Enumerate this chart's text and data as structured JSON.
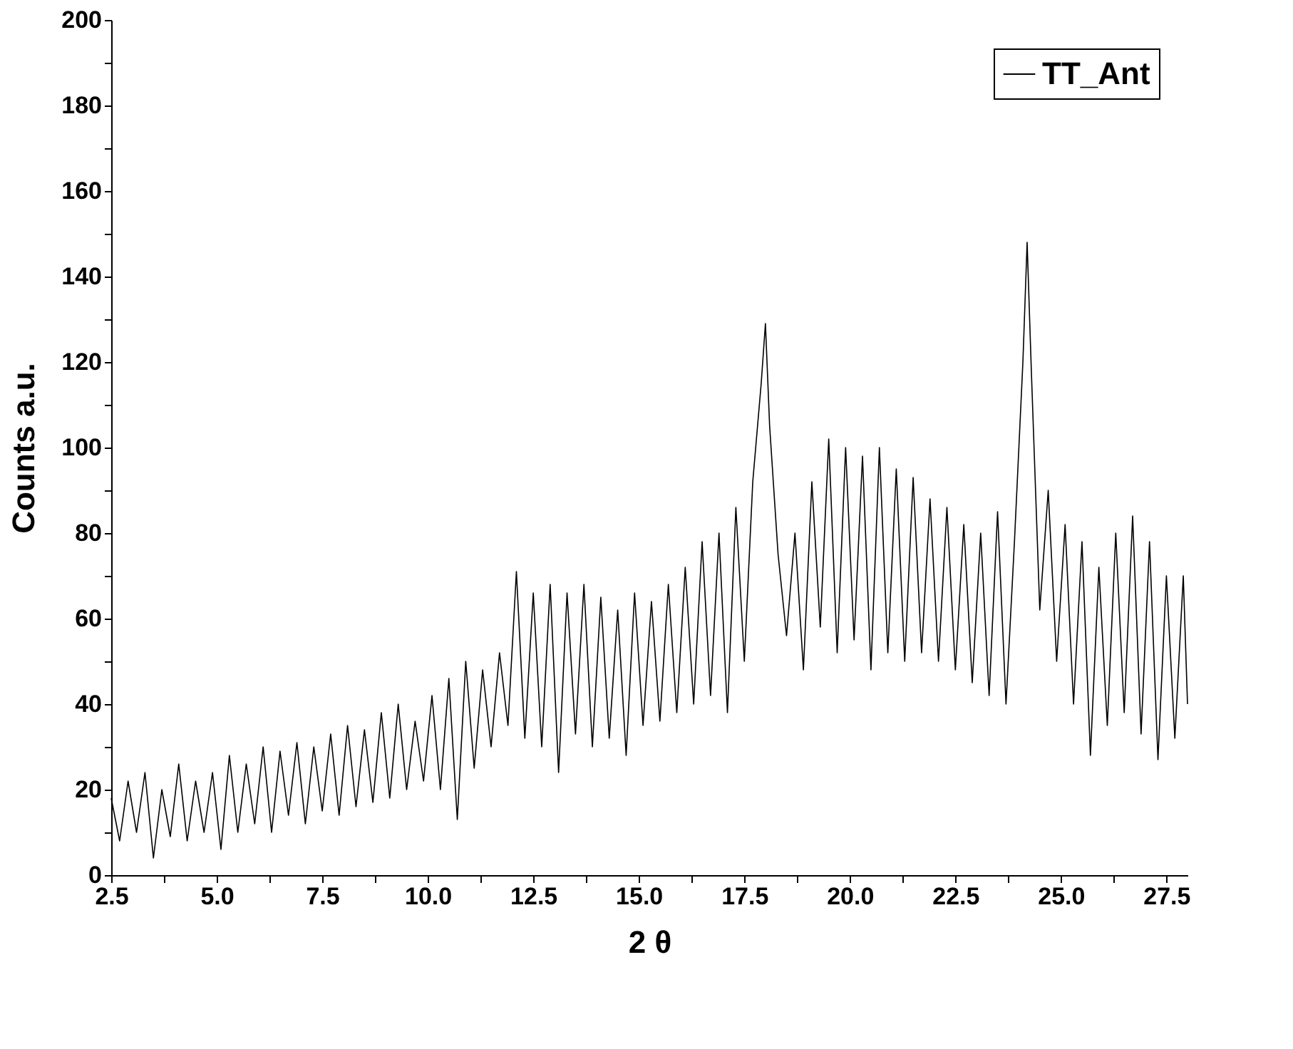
{
  "chart_data": {
    "type": "line",
    "xlabel": "2 θ",
    "ylabel": "Counts a.u.",
    "xlim": [
      2.5,
      28.0
    ],
    "ylim": [
      0,
      200
    ],
    "xticks": [
      {
        "value": 2.5,
        "label": "2.5"
      },
      {
        "value": 3.75,
        "label": null
      },
      {
        "value": 5,
        "label": "5.0"
      },
      {
        "value": 6.25,
        "label": null
      },
      {
        "value": 7.5,
        "label": "7.5"
      },
      {
        "value": 8.75,
        "label": null
      },
      {
        "value": 10,
        "label": "10.0"
      },
      {
        "value": 11.25,
        "label": null
      },
      {
        "value": 12.5,
        "label": "12.5"
      },
      {
        "value": 13.75,
        "label": null
      },
      {
        "value": 15,
        "label": "15.0"
      },
      {
        "value": 16.25,
        "label": null
      },
      {
        "value": 17.5,
        "label": "17.5"
      },
      {
        "value": 18.75,
        "label": null
      },
      {
        "value": 20,
        "label": "20.0"
      },
      {
        "value": 21.25,
        "label": null
      },
      {
        "value": 22.5,
        "label": "22.5"
      },
      {
        "value": 23.75,
        "label": null
      },
      {
        "value": 25,
        "label": "25.0"
      },
      {
        "value": 26.25,
        "label": null
      },
      {
        "value": 27.5,
        "label": "27.5"
      }
    ],
    "yticks": [
      0,
      {
        "value": 10,
        "label": null
      },
      20,
      {
        "value": 30,
        "label": null
      },
      40,
      {
        "value": 50,
        "label": null
      },
      60,
      {
        "value": 70,
        "label": null
      },
      80,
      {
        "value": 90,
        "label": null
      },
      100,
      {
        "value": 110,
        "label": null
      },
      120,
      {
        "value": 130,
        "label": null
      },
      140,
      {
        "value": 150,
        "label": null
      },
      160,
      {
        "value": 170,
        "label": null
      },
      180,
      {
        "value": 190,
        "label": null
      },
      200
    ],
    "grid": false,
    "legend": "top right",
    "marker": "none",
    "line_style": "solid",
    "series": [
      {
        "name": "TT_Ant",
        "color": "#000000",
        "x": [
          2.5,
          2.7,
          2.9,
          3.1,
          3.3,
          3.5,
          3.7,
          3.9,
          4.1,
          4.3,
          4.5,
          4.7,
          4.9,
          5.1,
          5.3,
          5.5,
          5.7,
          5.9,
          6.1,
          6.3,
          6.5,
          6.7,
          6.9,
          7.1,
          7.3,
          7.5,
          7.7,
          7.9,
          8.1,
          8.3,
          8.5,
          8.7,
          8.9,
          9.1,
          9.3,
          9.5,
          9.7,
          9.9,
          10.1,
          10.3,
          10.5,
          10.7,
          10.9,
          11.1,
          11.3,
          11.5,
          11.7,
          11.9,
          12.1,
          12.3,
          12.5,
          12.7,
          12.9,
          13.1,
          13.3,
          13.5,
          13.7,
          13.9,
          14.1,
          14.3,
          14.5,
          14.7,
          14.9,
          15.1,
          15.3,
          15.5,
          15.7,
          15.9,
          16.1,
          16.3,
          16.5,
          16.7,
          16.9,
          17.1,
          17.3,
          17.5,
          17.7,
          17.9,
          18.0,
          18.1,
          18.3,
          18.5,
          18.7,
          18.9,
          19.1,
          19.3,
          19.5,
          19.7,
          19.9,
          20.1,
          20.3,
          20.5,
          20.7,
          20.9,
          21.1,
          21.3,
          21.5,
          21.7,
          21.9,
          22.1,
          22.3,
          22.5,
          22.7,
          22.9,
          23.1,
          23.3,
          23.5,
          23.7,
          23.9,
          24.1,
          24.2,
          24.3,
          24.5,
          24.7,
          24.9,
          25.1,
          25.3,
          25.5,
          25.7,
          25.9,
          26.1,
          26.3,
          26.5,
          26.7,
          26.9,
          27.1,
          27.3,
          27.5,
          27.7,
          27.9,
          28.0
        ],
        "values": [
          18,
          8,
          22,
          10,
          24,
          4,
          20,
          9,
          26,
          8,
          22,
          10,
          24,
          6,
          28,
          10,
          26,
          12,
          30,
          10,
          29,
          14,
          31,
          12,
          30,
          15,
          33,
          14,
          35,
          16,
          34,
          17,
          38,
          18,
          40,
          20,
          36,
          22,
          42,
          20,
          46,
          13,
          50,
          25,
          48,
          30,
          52,
          35,
          71,
          32,
          66,
          30,
          68,
          24,
          66,
          33,
          68,
          30,
          65,
          32,
          62,
          28,
          66,
          35,
          64,
          36,
          68,
          38,
          72,
          40,
          78,
          42,
          80,
          38,
          86,
          50,
          92,
          115,
          129,
          105,
          75,
          56,
          80,
          48,
          92,
          58,
          102,
          52,
          100,
          55,
          98,
          48,
          100,
          52,
          95,
          50,
          93,
          52,
          88,
          50,
          86,
          48,
          82,
          45,
          80,
          42,
          85,
          40,
          78,
          120,
          148,
          118,
          62,
          90,
          50,
          82,
          40,
          78,
          28,
          72,
          35,
          80,
          38,
          84,
          33,
          78,
          27,
          70,
          32,
          70,
          40
        ]
      }
    ]
  }
}
